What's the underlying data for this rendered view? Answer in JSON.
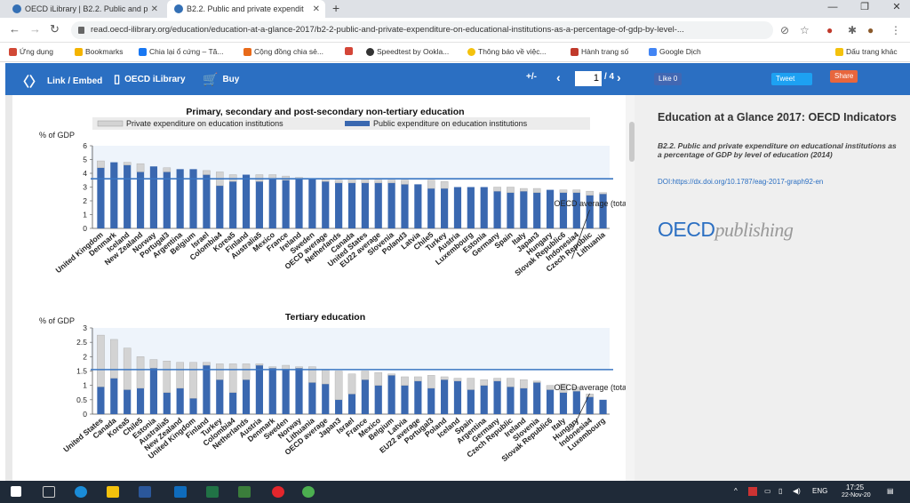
{
  "browser": {
    "tabs": [
      {
        "label": "OECD iLibrary | B2.2. Public and p"
      },
      {
        "label": "B2.2. Public and private expendit"
      }
    ],
    "new_tab": "+",
    "window_controls": {
      "minimize": "—",
      "restore": "❐",
      "close": "✕"
    },
    "url": "read.oecd-ilibrary.org/education/education-at-a-glance-2017/b2-2-public-and-private-expenditure-on-educational-institutions-as-a-percentage-of-gdp-by-level-...",
    "bookmarks": [
      {
        "label": "Ứng dụng",
        "color": "#d14836"
      },
      {
        "label": "Bookmarks",
        "color": "#f4b400"
      },
      {
        "label": "Chia lại ổ cứng – Tă...",
        "color": "#1877f2"
      },
      {
        "label": "Cộng đồng chia sẻ...",
        "color": "#e86a1a"
      },
      {
        "label": "",
        "color": "#d44638"
      },
      {
        "label": "Speedtest by Ookla...",
        "color": "#333333"
      },
      {
        "label": "Thông báo về việc...",
        "color": "#f4c20d"
      },
      {
        "label": "Hành trang số",
        "color": "#c0392b"
      },
      {
        "label": "Google Dịch",
        "color": "#4285f4"
      }
    ],
    "bookmark_other": "Dấu trang khác"
  },
  "toolbar": {
    "link_embed": "Link / Embed",
    "oecd_ilibrary": "OECD iLibrary",
    "buy": "Buy",
    "zoom": "+/-",
    "page_current": "1",
    "page_total": "/ 4",
    "like": "Like 0",
    "tweet": "Tweet",
    "share": "Share"
  },
  "panel": {
    "title": "Education at a Glance 2017: OECD Indicators",
    "subtitle": "B2.2. Public and private expenditure on educational institutions as a percentage of GDP by level of education (2014)",
    "doi": "DOI:https://dx.doi.org/10.1787/eag-2017-graph92-en",
    "logo_main": "OECD",
    "logo_sub": "publishing"
  },
  "taskbar": {
    "lang": "ENG",
    "time": "17:25",
    "date": "22-Nov-20"
  },
  "colors": {
    "public": "#3a68b0",
    "private": "#d3d3d3",
    "average": "#3a76c2",
    "toolbar": "#2b6fc2"
  },
  "chart_data": [
    {
      "type": "bar",
      "title": "Primary, secondary and post-secondary non-tertiary education",
      "ylabel": "% of GDP",
      "ylim": [
        0,
        6
      ],
      "yticks": [
        0,
        1,
        2,
        3,
        4,
        5,
        6
      ],
      "stacked": true,
      "legend": "top",
      "categories": [
        "United Kingdom",
        "Denmark",
        "Iceland",
        "New Zealand",
        "Norway",
        "Portugal3",
        "Argentina",
        "Belgium",
        "Israel",
        "Colombia4",
        "Korea5",
        "Finland",
        "Australia5",
        "Mexico",
        "France",
        "Ireland",
        "Sweden",
        "OECD average",
        "Netherlands",
        "Canada",
        "United States",
        "EU22 average",
        "Slovenia",
        "Poland3",
        "Latvia",
        "Chile5",
        "Turkey",
        "Austria",
        "Luxembourg",
        "Estonia",
        "Germany",
        "Spain",
        "Italy",
        "Japan3",
        "Hungary",
        "Slovak Republic6",
        "Indonesia4",
        "Czech Republic",
        "Lithuania"
      ],
      "series": [
        {
          "name": "Public expenditure on education institutions",
          "values": [
            4.4,
            4.8,
            4.6,
            4.1,
            4.5,
            4.1,
            4.3,
            4.3,
            3.9,
            3.1,
            3.4,
            3.9,
            3.4,
            3.6,
            3.5,
            3.6,
            3.6,
            3.4,
            3.3,
            3.3,
            3.3,
            3.3,
            3.3,
            3.2,
            3.2,
            2.9,
            2.9,
            3.0,
            3.0,
            3.0,
            2.7,
            2.6,
            2.7,
            2.6,
            2.8,
            2.6,
            2.6,
            2.4,
            2.5
          ]
        },
        {
          "name": "Private expenditure on education institutions",
          "values": [
            0.5,
            0.0,
            0.2,
            0.6,
            0.0,
            0.3,
            0.0,
            0.0,
            0.3,
            1.0,
            0.5,
            0.0,
            0.5,
            0.3,
            0.3,
            0.1,
            0.0,
            0.2,
            0.2,
            0.3,
            0.3,
            0.2,
            0.2,
            0.3,
            0.0,
            0.6,
            0.5,
            0.0,
            0.0,
            0.0,
            0.3,
            0.4,
            0.2,
            0.3,
            0.0,
            0.2,
            0.2,
            0.3,
            0.1
          ]
        }
      ],
      "average": 3.6,
      "average_label": "OECD average (total exp"
    },
    {
      "type": "bar",
      "title": "Tertiary education",
      "ylabel": "% of GDP",
      "ylim": [
        0,
        3
      ],
      "yticks": [
        0,
        0.5,
        1,
        1.5,
        2,
        2.5,
        3
      ],
      "stacked": true,
      "categories": [
        "United States",
        "Canada",
        "Korea5",
        "Chile5",
        "Estonia",
        "Australia5",
        "New Zealand",
        "United Kingdom",
        "Finland",
        "Turkey",
        "Colombia4",
        "Netherlands",
        "Austria",
        "Denmark",
        "Sweden",
        "Norway",
        "Lithuania",
        "OECD average",
        "Japan3",
        "Israel",
        "France",
        "Mexico",
        "Belgium",
        "Latvia",
        "EU22 average",
        "Portugal3",
        "Poland",
        "Iceland",
        "Spain",
        "Argentina",
        "Germany",
        "Czech Republic",
        "Ireland",
        "Slovenia",
        "Slovak Republic6",
        "Italy",
        "Hungary",
        "Indonesia4",
        "Luxembourg"
      ],
      "series": [
        {
          "name": "Public expenditure on education institutions",
          "values": [
            0.95,
            1.25,
            0.85,
            0.9,
            1.6,
            0.75,
            0.9,
            0.55,
            1.7,
            1.2,
            0.75,
            1.2,
            1.7,
            1.6,
            1.55,
            1.6,
            1.1,
            1.05,
            0.5,
            0.7,
            1.2,
            1.0,
            1.35,
            1.0,
            1.15,
            0.9,
            1.2,
            1.15,
            0.85,
            1.0,
            1.15,
            0.95,
            0.9,
            1.1,
            0.85,
            0.75,
            0.8,
            0.6,
            0.5
          ]
        },
        {
          "name": "Private expenditure on education institutions",
          "values": [
            1.8,
            1.35,
            1.45,
            1.1,
            0.3,
            1.1,
            0.9,
            1.25,
            0.1,
            0.55,
            1.0,
            0.55,
            0.05,
            0.05,
            0.15,
            0.05,
            0.55,
            0.5,
            1.0,
            0.7,
            0.3,
            0.45,
            0.05,
            0.3,
            0.15,
            0.45,
            0.1,
            0.1,
            0.4,
            0.2,
            0.1,
            0.3,
            0.3,
            0.05,
            0.15,
            0.3,
            0.15,
            0.1,
            0.0
          ]
        }
      ],
      "average": 1.55,
      "average_label": "OECD average (total exp"
    }
  ]
}
